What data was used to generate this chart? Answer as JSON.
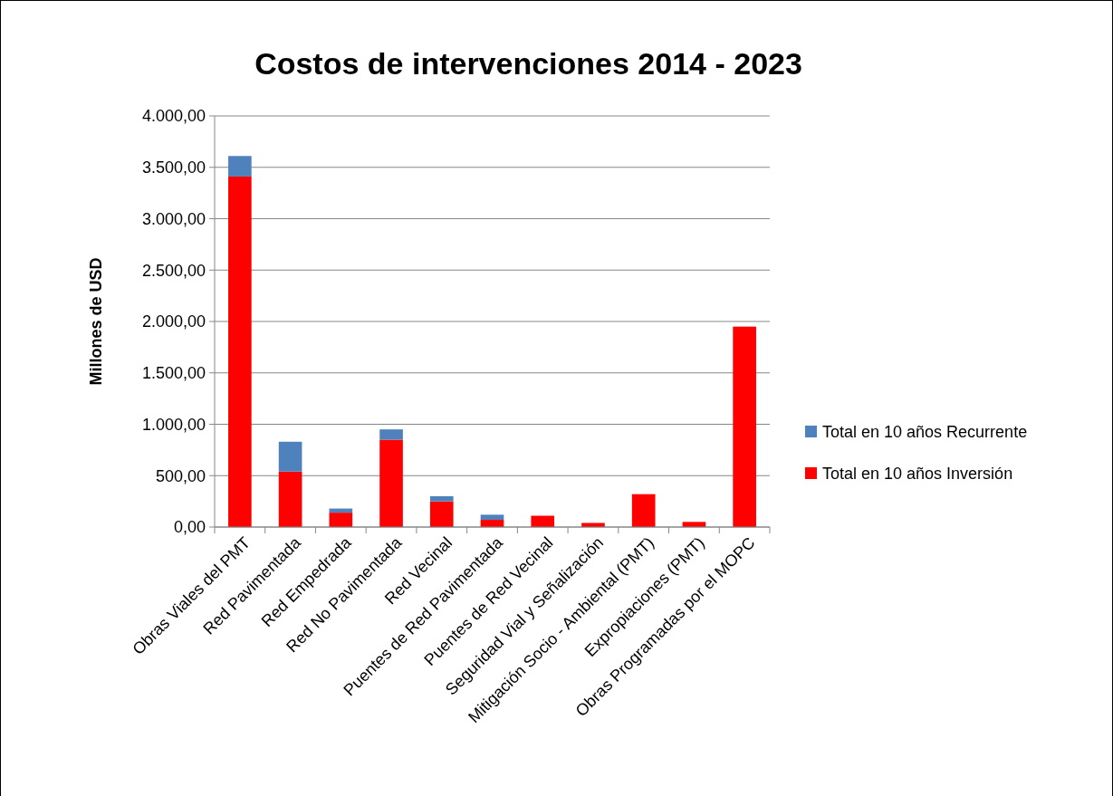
{
  "chart_data": {
    "type": "bar",
    "title": "Costos de intervenciones 2014 - 2023",
    "ylabel": "Millones de USD",
    "categories": [
      "Obras Viales del PMT",
      "Red Pavimentada",
      "Red Empedrada",
      "Red No Pavimentada",
      "Red Vecinal",
      "Puentes de Red Pavimentada",
      "Puentes de Red Vecinal",
      "Seguridad Vial y Señalización",
      "Mitigación Socio - Ambiental (PMT)",
      "Expropiaciones (PMT)",
      "Obras Programadas por el MOPC"
    ],
    "stacked": true,
    "series": [
      {
        "name": "Total en 10 años Inversión",
        "color": "#ff0000",
        "values": [
          3410,
          540,
          140,
          850,
          250,
          70,
          110,
          40,
          320,
          50,
          1950
        ]
      },
      {
        "name": "Total en 10 años Recurrente",
        "color": "#4f81bd",
        "values": [
          200,
          290,
          40,
          100,
          50,
          50,
          0,
          0,
          0,
          0,
          0
        ]
      }
    ],
    "ylim": [
      0,
      4000
    ],
    "yticks": [
      {
        "value": 0,
        "label": "0,00"
      },
      {
        "value": 500,
        "label": "500,00"
      },
      {
        "value": 1000,
        "label": "1.000,00"
      },
      {
        "value": 1500,
        "label": "1.500,00"
      },
      {
        "value": 2000,
        "label": "2.000,00"
      },
      {
        "value": 2500,
        "label": "2.500,00"
      },
      {
        "value": 3000,
        "label": "3.000,00"
      },
      {
        "value": 3500,
        "label": "3.500,00"
      },
      {
        "value": 4000,
        "label": "4.000,00"
      }
    ],
    "grid": "y",
    "legend": "right"
  }
}
